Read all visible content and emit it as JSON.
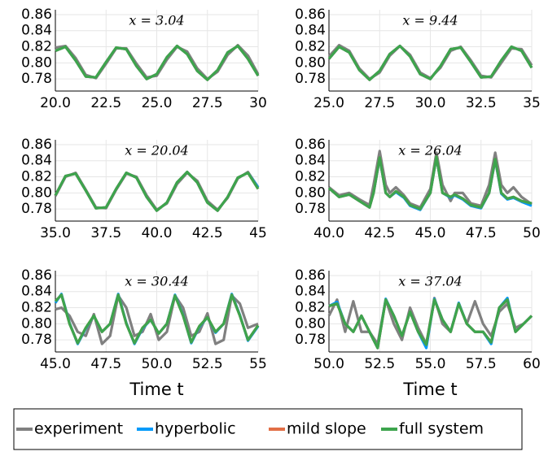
{
  "chart_data": [
    {
      "type": "line",
      "title": "x = 3.04",
      "xlim": [
        20,
        30
      ],
      "ylim": [
        0.765,
        0.866
      ],
      "xticks": [
        {
          "value": 20,
          "label": "20.0"
        },
        {
          "value": 22.5,
          "label": "22.5"
        },
        {
          "value": 25,
          "label": "25.0"
        },
        {
          "value": 27.5,
          "label": "27.5"
        },
        30
      ],
      "yticks": [
        0.78,
        {
          "value": 0.8,
          "label": "0.80"
        },
        0.82,
        0.84,
        0.86
      ],
      "grid": true,
      "x": [
        20,
        20.5,
        21,
        21.5,
        22,
        22.5,
        23,
        23.5,
        24,
        24.5,
        25,
        25.5,
        26,
        26.5,
        27,
        27.5,
        28,
        28.5,
        29,
        29.5,
        30
      ],
      "series": [
        {
          "name": "experiment",
          "color": "#808080",
          "values": [
            0.819,
            0.821,
            0.806,
            0.785,
            0.781,
            0.799,
            0.818,
            0.818,
            0.799,
            0.782,
            0.784,
            0.804,
            0.82,
            0.814,
            0.793,
            0.78,
            0.789,
            0.81,
            0.822,
            0.809,
            0.786
          ]
        },
        {
          "name": "hyperbolic",
          "color": "#009AFA",
          "values": [
            0.815,
            0.82,
            0.803,
            0.783,
            0.782,
            0.801,
            0.819,
            0.817,
            0.796,
            0.78,
            0.786,
            0.807,
            0.821,
            0.811,
            0.79,
            0.779,
            0.791,
            0.813,
            0.821,
            0.805,
            0.784
          ]
        },
        {
          "name": "mild slope",
          "color": "#E26F46",
          "values": [
            0.815,
            0.82,
            0.803,
            0.783,
            0.782,
            0.801,
            0.819,
            0.817,
            0.796,
            0.78,
            0.786,
            0.807,
            0.821,
            0.811,
            0.79,
            0.779,
            0.791,
            0.813,
            0.821,
            0.805,
            0.784
          ]
        },
        {
          "name": "full system",
          "color": "#3DA44D",
          "values": [
            0.815,
            0.82,
            0.803,
            0.783,
            0.782,
            0.801,
            0.819,
            0.817,
            0.796,
            0.78,
            0.786,
            0.807,
            0.821,
            0.811,
            0.79,
            0.779,
            0.791,
            0.813,
            0.821,
            0.805,
            0.784
          ]
        }
      ]
    },
    {
      "type": "line",
      "title": "x = 9.44",
      "xlim": [
        25,
        35
      ],
      "ylim": [
        0.765,
        0.866
      ],
      "xticks": [
        {
          "value": 25,
          "label": "25.0"
        },
        {
          "value": 27.5,
          "label": "27.5"
        },
        {
          "value": 30,
          "label": "30.0"
        },
        {
          "value": 32.5,
          "label": "32.5"
        },
        35
      ],
      "yticks": [
        0.78,
        {
          "value": 0.8,
          "label": "0.80"
        },
        0.82,
        0.84,
        0.86
      ],
      "grid": true,
      "x": [
        25,
        25.5,
        26,
        26.5,
        27,
        27.5,
        28,
        28.5,
        29,
        29.5,
        30,
        30.5,
        31,
        31.5,
        32,
        32.5,
        33,
        33.5,
        34,
        34.5,
        35
      ],
      "series": [
        {
          "name": "experiment",
          "color": "#808080",
          "values": [
            0.808,
            0.822,
            0.815,
            0.793,
            0.78,
            0.788,
            0.809,
            0.821,
            0.81,
            0.788,
            0.781,
            0.794,
            0.815,
            0.82,
            0.803,
            0.784,
            0.782,
            0.8,
            0.818,
            0.817,
            0.797
          ]
        },
        {
          "name": "hyperbolic",
          "color": "#009AFA",
          "values": [
            0.805,
            0.82,
            0.813,
            0.791,
            0.779,
            0.79,
            0.811,
            0.821,
            0.808,
            0.786,
            0.78,
            0.796,
            0.817,
            0.819,
            0.801,
            0.782,
            0.783,
            0.803,
            0.82,
            0.815,
            0.794
          ]
        },
        {
          "name": "mild slope",
          "color": "#E26F46",
          "values": [
            0.805,
            0.82,
            0.813,
            0.791,
            0.779,
            0.79,
            0.811,
            0.821,
            0.808,
            0.786,
            0.78,
            0.796,
            0.817,
            0.819,
            0.801,
            0.782,
            0.783,
            0.803,
            0.82,
            0.815,
            0.794
          ]
        },
        {
          "name": "full system",
          "color": "#3DA44D",
          "values": [
            0.805,
            0.82,
            0.813,
            0.791,
            0.779,
            0.79,
            0.811,
            0.821,
            0.808,
            0.786,
            0.78,
            0.796,
            0.817,
            0.819,
            0.801,
            0.782,
            0.783,
            0.803,
            0.82,
            0.815,
            0.794
          ]
        }
      ]
    },
    {
      "type": "line",
      "title": "x = 20.04",
      "xlim": [
        35,
        45
      ],
      "ylim": [
        0.765,
        0.866
      ],
      "xticks": [
        {
          "value": 35,
          "label": "35.0"
        },
        {
          "value": 37.5,
          "label": "37.5"
        },
        {
          "value": 40,
          "label": "40.0"
        },
        {
          "value": 42.5,
          "label": "42.5"
        },
        45
      ],
      "yticks": [
        0.78,
        {
          "value": 0.8,
          "label": "0.80"
        },
        0.82,
        0.84,
        0.86
      ],
      "grid": true,
      "x": [
        35,
        35.5,
        36,
        36.5,
        37,
        37.5,
        38,
        38.5,
        39,
        39.5,
        40,
        40.5,
        41,
        41.5,
        42,
        42.5,
        43,
        43.5,
        44,
        44.5,
        45
      ],
      "series": [
        {
          "name": "experiment",
          "color": "#808080",
          "values": [
            0.796,
            0.82,
            0.825,
            0.804,
            0.782,
            0.781,
            0.804,
            0.824,
            0.82,
            0.797,
            0.779,
            0.787,
            0.811,
            0.825,
            0.815,
            0.79,
            0.779,
            0.794,
            0.818,
            0.826,
            0.807
          ]
        },
        {
          "name": "hyperbolic",
          "color": "#009AFA",
          "values": [
            0.797,
            0.821,
            0.824,
            0.803,
            0.781,
            0.782,
            0.805,
            0.825,
            0.819,
            0.795,
            0.778,
            0.788,
            0.813,
            0.826,
            0.813,
            0.788,
            0.778,
            0.795,
            0.819,
            0.825,
            0.807
          ]
        },
        {
          "name": "mild slope",
          "color": "#E26F46",
          "values": [
            0.797,
            0.821,
            0.824,
            0.803,
            0.781,
            0.782,
            0.805,
            0.825,
            0.819,
            0.795,
            0.778,
            0.788,
            0.813,
            0.826,
            0.813,
            0.788,
            0.778,
            0.795,
            0.819,
            0.825,
            0.805
          ]
        },
        {
          "name": "full system",
          "color": "#3DA44D",
          "values": [
            0.797,
            0.821,
            0.824,
            0.803,
            0.781,
            0.782,
            0.805,
            0.825,
            0.819,
            0.795,
            0.778,
            0.788,
            0.813,
            0.826,
            0.813,
            0.788,
            0.778,
            0.795,
            0.819,
            0.825,
            0.805
          ]
        }
      ]
    },
    {
      "type": "line",
      "title": "x = 26.04",
      "xlim": [
        40,
        50
      ],
      "ylim": [
        0.765,
        0.866
      ],
      "xticks": [
        {
          "value": 40,
          "label": "40.0"
        },
        {
          "value": 42.5,
          "label": "42.5"
        },
        {
          "value": 45,
          "label": "45.0"
        },
        {
          "value": 47.5,
          "label": "47.5"
        },
        50
      ],
      "yticks": [
        0.78,
        {
          "value": 0.8,
          "label": "0.80"
        },
        0.82,
        0.84,
        0.86
      ],
      "grid": true,
      "x": [
        40,
        40.5,
        41,
        41.5,
        42,
        42.2,
        42.5,
        42.8,
        43,
        43.3,
        43.7,
        44,
        44.5,
        45,
        45.3,
        45.6,
        46,
        46.2,
        46.6,
        47,
        47.5,
        47.9,
        48.2,
        48.5,
        48.8,
        49.1,
        49.5,
        50
      ],
      "series": [
        {
          "name": "experiment",
          "color": "#808080",
          "values": [
            0.807,
            0.797,
            0.8,
            0.792,
            0.785,
            0.81,
            0.852,
            0.81,
            0.8,
            0.807,
            0.797,
            0.787,
            0.782,
            0.805,
            0.85,
            0.81,
            0.79,
            0.8,
            0.8,
            0.787,
            0.784,
            0.81,
            0.85,
            0.81,
            0.8,
            0.807,
            0.795,
            0.786
          ]
        },
        {
          "name": "hyperbolic",
          "color": "#009AFA",
          "values": [
            0.806,
            0.795,
            0.798,
            0.79,
            0.782,
            0.8,
            0.843,
            0.8,
            0.795,
            0.801,
            0.794,
            0.784,
            0.779,
            0.8,
            0.844,
            0.8,
            0.794,
            0.797,
            0.792,
            0.784,
            0.781,
            0.8,
            0.841,
            0.799,
            0.792,
            0.794,
            0.789,
            0.784
          ]
        },
        {
          "name": "mild slope",
          "color": "#E26F46",
          "values": [
            0.806,
            0.795,
            0.798,
            0.79,
            0.782,
            0.8,
            0.844,
            0.8,
            0.795,
            0.802,
            0.795,
            0.785,
            0.78,
            0.8,
            0.845,
            0.8,
            0.795,
            0.798,
            0.793,
            0.785,
            0.782,
            0.8,
            0.842,
            0.8,
            0.793,
            0.795,
            0.79,
            0.787
          ]
        },
        {
          "name": "full system",
          "color": "#3DA44D",
          "values": [
            0.806,
            0.795,
            0.798,
            0.79,
            0.782,
            0.8,
            0.844,
            0.8,
            0.795,
            0.802,
            0.795,
            0.785,
            0.78,
            0.8,
            0.845,
            0.8,
            0.795,
            0.798,
            0.793,
            0.785,
            0.782,
            0.8,
            0.842,
            0.8,
            0.793,
            0.795,
            0.79,
            0.787
          ]
        }
      ]
    },
    {
      "type": "line",
      "title": "x = 30.44",
      "xlabel": "Time t",
      "xlim": [
        45,
        55
      ],
      "ylim": [
        0.765,
        0.866
      ],
      "xticks": [
        {
          "value": 45,
          "label": "45.0"
        },
        {
          "value": 47.5,
          "label": "47.5"
        },
        {
          "value": 50,
          "label": "50.0"
        },
        {
          "value": 52.5,
          "label": "52.5"
        },
        55
      ],
      "yticks": [
        0.78,
        {
          "value": 0.8,
          "label": "0.80"
        },
        0.82,
        0.84,
        0.86
      ],
      "grid": true,
      "x": [
        45,
        45.3,
        45.7,
        46.1,
        46.5,
        46.9,
        47.3,
        47.7,
        48.1,
        48.5,
        48.9,
        49.3,
        49.7,
        50.1,
        50.5,
        50.9,
        51.3,
        51.7,
        52.1,
        52.5,
        52.9,
        53.3,
        53.7,
        54.1,
        54.5,
        55
      ],
      "series": [
        {
          "name": "experiment",
          "color": "#808080",
          "values": [
            0.818,
            0.82,
            0.81,
            0.79,
            0.785,
            0.812,
            0.775,
            0.785,
            0.835,
            0.82,
            0.785,
            0.79,
            0.812,
            0.78,
            0.79,
            0.835,
            0.82,
            0.785,
            0.79,
            0.813,
            0.775,
            0.78,
            0.835,
            0.825,
            0.795,
            0.8
          ]
        },
        {
          "name": "hyperbolic",
          "color": "#009AFA",
          "values": [
            0.826,
            0.837,
            0.801,
            0.775,
            0.794,
            0.81,
            0.79,
            0.8,
            0.837,
            0.801,
            0.775,
            0.794,
            0.805,
            0.788,
            0.8,
            0.836,
            0.811,
            0.776,
            0.796,
            0.808,
            0.789,
            0.8,
            0.837,
            0.811,
            0.779,
            0.797
          ]
        },
        {
          "name": "mild slope",
          "color": "#E26F46",
          "values": [
            0.828,
            0.836,
            0.8,
            0.776,
            0.795,
            0.81,
            0.79,
            0.8,
            0.836,
            0.8,
            0.776,
            0.795,
            0.805,
            0.788,
            0.8,
            0.835,
            0.81,
            0.777,
            0.797,
            0.808,
            0.79,
            0.8,
            0.836,
            0.81,
            0.78,
            0.798
          ]
        },
        {
          "name": "full system",
          "color": "#3DA44D",
          "values": [
            0.828,
            0.836,
            0.8,
            0.776,
            0.795,
            0.81,
            0.79,
            0.8,
            0.836,
            0.8,
            0.776,
            0.795,
            0.805,
            0.788,
            0.8,
            0.835,
            0.81,
            0.777,
            0.797,
            0.808,
            0.79,
            0.8,
            0.836,
            0.81,
            0.78,
            0.798
          ]
        }
      ]
    },
    {
      "type": "line",
      "title": "x = 37.04",
      "xlabel": "Time t",
      "xlim": [
        50,
        60
      ],
      "ylim": [
        0.765,
        0.866
      ],
      "xticks": [
        {
          "value": 50,
          "label": "50.0"
        },
        {
          "value": 52.5,
          "label": "52.5"
        },
        {
          "value": 55,
          "label": "55.0"
        },
        {
          "value": 57.5,
          "label": "57.5"
        },
        60
      ],
      "yticks": [
        0.78,
        {
          "value": 0.8,
          "label": "0.80"
        },
        0.82,
        0.84,
        0.86
      ],
      "grid": true,
      "x": [
        50,
        50.4,
        50.8,
        51.2,
        51.6,
        52,
        52.4,
        52.8,
        53.2,
        53.6,
        54,
        54.4,
        54.8,
        55.2,
        55.6,
        56,
        56.4,
        56.8,
        57.2,
        57.6,
        58,
        58.4,
        58.8,
        59.2,
        59.6,
        60
      ],
      "series": [
        {
          "name": "experiment",
          "color": "#808080",
          "values": [
            0.81,
            0.83,
            0.79,
            0.828,
            0.79,
            0.79,
            0.775,
            0.83,
            0.8,
            0.78,
            0.82,
            0.795,
            0.775,
            0.832,
            0.8,
            0.79,
            0.825,
            0.8,
            0.828,
            0.8,
            0.785,
            0.815,
            0.825,
            0.795,
            0.8,
            0.81
          ]
        },
        {
          "name": "hyperbolic",
          "color": "#009AFA",
          "values": [
            0.822,
            0.827,
            0.8,
            0.79,
            0.81,
            0.79,
            0.77,
            0.831,
            0.81,
            0.785,
            0.815,
            0.79,
            0.77,
            0.831,
            0.805,
            0.79,
            0.826,
            0.8,
            0.79,
            0.79,
            0.775,
            0.82,
            0.832,
            0.79,
            0.8,
            0.81
          ]
        },
        {
          "name": "mild slope",
          "color": "#E26F46",
          "values": [
            0.822,
            0.825,
            0.8,
            0.79,
            0.81,
            0.79,
            0.77,
            0.83,
            0.81,
            0.785,
            0.815,
            0.79,
            0.774,
            0.83,
            0.805,
            0.79,
            0.825,
            0.8,
            0.79,
            0.79,
            0.777,
            0.82,
            0.83,
            0.79,
            0.8,
            0.81
          ]
        },
        {
          "name": "full system",
          "color": "#3DA44D",
          "values": [
            0.822,
            0.825,
            0.8,
            0.79,
            0.81,
            0.79,
            0.77,
            0.83,
            0.81,
            0.785,
            0.815,
            0.79,
            0.774,
            0.83,
            0.805,
            0.79,
            0.825,
            0.8,
            0.79,
            0.79,
            0.777,
            0.82,
            0.83,
            0.79,
            0.8,
            0.81
          ]
        }
      ]
    }
  ]
}
